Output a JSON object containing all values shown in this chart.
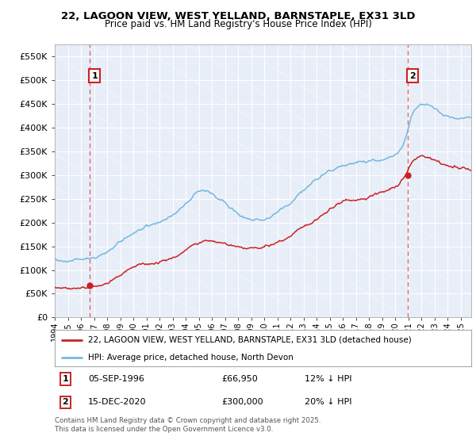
{
  "title_line1": "22, LAGOON VIEW, WEST YELLAND, BARNSTAPLE, EX31 3LD",
  "title_line2": "Price paid vs. HM Land Registry's House Price Index (HPI)",
  "ylim": [
    0,
    575000
  ],
  "yticks": [
    0,
    50000,
    100000,
    150000,
    200000,
    250000,
    300000,
    350000,
    400000,
    450000,
    500000,
    550000
  ],
  "ytick_labels": [
    "£0",
    "£50K",
    "£100K",
    "£150K",
    "£200K",
    "£250K",
    "£300K",
    "£350K",
    "£400K",
    "£450K",
    "£500K",
    "£550K"
  ],
  "hpi_color": "#74b8e0",
  "price_color": "#cc2222",
  "marker_color": "#cc2222",
  "dashed_line_color": "#dd6666",
  "background_color": "#e8eef8",
  "legend_label_price": "22, LAGOON VIEW, WEST YELLAND, BARNSTAPLE, EX31 3LD (detached house)",
  "legend_label_hpi": "HPI: Average price, detached house, North Devon",
  "annotation1_label": "1",
  "annotation1_date": "05-SEP-1996",
  "annotation1_price": "£66,950",
  "annotation1_hpi": "12% ↓ HPI",
  "annotation2_label": "2",
  "annotation2_date": "15-DEC-2020",
  "annotation2_price": "£300,000",
  "annotation2_hpi": "20% ↓ HPI",
  "footnote": "Contains HM Land Registry data © Crown copyright and database right 2025.\nThis data is licensed under the Open Government Licence v3.0.",
  "sale1_year": 1996.67,
  "sale1_price": 66950,
  "sale2_year": 2020.96,
  "sale2_price": 300000,
  "xmin": 1994.0,
  "xmax": 2025.8,
  "xtick_years": [
    1994,
    1995,
    1996,
    1997,
    1998,
    1999,
    2000,
    2001,
    2002,
    2003,
    2004,
    2005,
    2006,
    2007,
    2008,
    2009,
    2010,
    2011,
    2012,
    2013,
    2014,
    2015,
    2016,
    2017,
    2018,
    2019,
    2020,
    2021,
    2022,
    2023,
    2024,
    2025
  ]
}
